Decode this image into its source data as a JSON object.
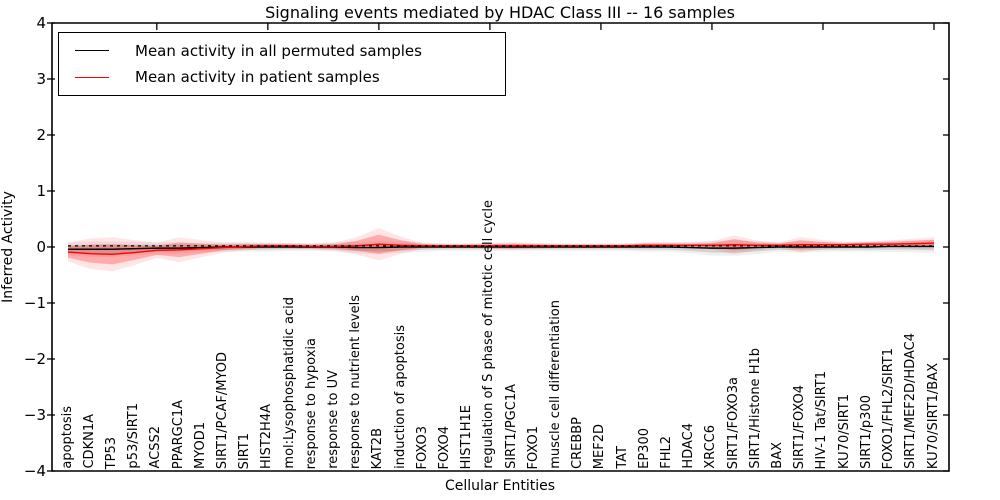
{
  "figure": {
    "title": "Signaling events mediated by HDAC Class III -- 16 samples",
    "xlabel": "Cellular Entities",
    "ylabel": "Inferred Activity"
  },
  "legend": {
    "items": [
      {
        "label": "Mean activity in all permuted samples",
        "color": "#000000"
      },
      {
        "label": "Mean activity in patient samples",
        "color": "#ff0000"
      }
    ]
  },
  "chart_data": {
    "type": "line",
    "title": "Signaling events mediated by HDAC Class III -- 16 samples",
    "xlabel": "Cellular Entities",
    "ylabel": "Inferred Activity",
    "ylim": [
      -4,
      4
    ],
    "yticks": [
      -4,
      -3,
      -2,
      -1,
      0,
      1,
      2,
      3,
      4
    ],
    "ytick_labels": [
      "−4",
      "−3",
      "−2",
      "−1",
      "0",
      "1",
      "2",
      "3",
      "4"
    ],
    "grid": false,
    "legend_position": "upper left",
    "top_tick_indices": [
      4,
      9,
      14,
      19,
      24,
      29,
      34,
      39
    ],
    "categories": [
      "apoptosis",
      "CDKN1A",
      "TP53",
      "p53/SIRT1",
      "ACSS2",
      "PPARGC1A",
      "MYOD1",
      "SIRT1/PCAF/MYOD",
      "SIRT1",
      "HIST2H4A",
      "mol:Lysophosphatidic acid",
      "response to hypoxia",
      "response to UV",
      "response to nutrient levels",
      "KAT2B",
      "induction of apoptosis",
      "FOXO3",
      "FOXO4",
      "HIST1H1E",
      "regulation of S phase of mitotic cell cycle",
      "SIRT1/PGC1A",
      "FOXO1",
      "muscle cell differentiation",
      "CREBBP",
      "MEF2D",
      "TAT",
      "EP300",
      "FHL2",
      "HDAC4",
      "XRCC6",
      "SIRT1/FOXO3a",
      "SIRT1/Histone H1b",
      "BAX",
      "SIRT1/FOXO4",
      "HIV-1 Tat/SIRT1",
      "KU70/SIRT1",
      "SIRT1/p300",
      "FOXO1/FHL2/SIRT1",
      "SIRT1/MEF2D/HDAC4",
      "KU70/SIRT1/BAX"
    ],
    "series": [
      {
        "name": "Mean activity in all permuted samples",
        "color": "#000000",
        "style": "solid",
        "values": [
          -0.04,
          -0.04,
          -0.04,
          -0.03,
          -0.02,
          -0.02,
          -0.01,
          0,
          0,
          0,
          0,
          0,
          0,
          -0.01,
          -0.01,
          0,
          0,
          0,
          0,
          0,
          0,
          0,
          0,
          0,
          0,
          0,
          0,
          0,
          -0.01,
          -0.02,
          -0.02,
          -0.01,
          0,
          0,
          0,
          0,
          0,
          0.01,
          0.01,
          0.01
        ],
        "band_halfwidth": [
          0.07,
          0.08,
          0.08,
          0.07,
          0.06,
          0.06,
          0.05,
          0.05,
          0.05,
          0.05,
          0.04,
          0.04,
          0.05,
          0.06,
          0.07,
          0.06,
          0.05,
          0.04,
          0.04,
          0.04,
          0.04,
          0.04,
          0.04,
          0.04,
          0.04,
          0.04,
          0.05,
          0.05,
          0.06,
          0.08,
          0.08,
          0.07,
          0.05,
          0.06,
          0.05,
          0.05,
          0.05,
          0.06,
          0.06,
          0.07
        ],
        "band_color": "#000000"
      },
      {
        "name": "Mean activity in patient samples",
        "color": "#ff0000",
        "style": "solid",
        "values": [
          -0.09,
          -0.12,
          -0.13,
          -0.1,
          -0.06,
          -0.05,
          -0.03,
          -0.01,
          0.01,
          0.02,
          0.02,
          0.01,
          0.01,
          0.02,
          0.05,
          0.03,
          0.02,
          0.02,
          0.02,
          0.02,
          0.02,
          0.02,
          0.02,
          0.02,
          0.02,
          0.02,
          0.03,
          0.03,
          0.03,
          0.03,
          0.04,
          0.03,
          0.03,
          0.04,
          0.04,
          0.04,
          0.05,
          0.05,
          0.06,
          0.07
        ],
        "band_halfwidth": [
          0.1,
          0.16,
          0.18,
          0.13,
          0.08,
          0.13,
          0.09,
          0.05,
          0.04,
          0.03,
          0.03,
          0.03,
          0.04,
          0.09,
          0.17,
          0.09,
          0.03,
          0.02,
          0.02,
          0.03,
          0.04,
          0.03,
          0.02,
          0.02,
          0.02,
          0.02,
          0.03,
          0.03,
          0.03,
          0.04,
          0.1,
          0.05,
          0.03,
          0.08,
          0.05,
          0.03,
          0.03,
          0.04,
          0.05,
          0.06
        ],
        "band_color": "#ff0000"
      },
      {
        "name": "zero-reference-dashed",
        "color": "#000000",
        "style": "dashed",
        "constant": 0.02
      }
    ]
  }
}
